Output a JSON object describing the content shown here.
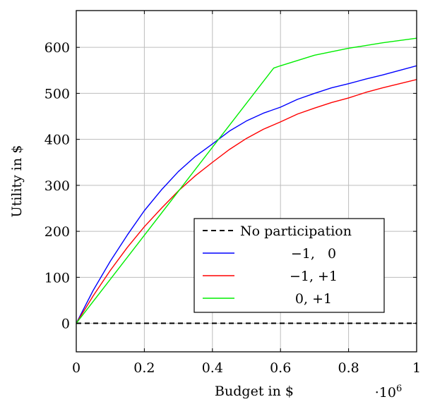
{
  "chart_data": {
    "type": "line",
    "xlabel": "Budget in $",
    "ylabel": "Utility in $",
    "x_multiplier_base": "·10",
    "x_multiplier_exp": "6",
    "xlim": [
      0,
      1
    ],
    "ylim": [
      -62,
      680
    ],
    "xticks": [
      0,
      0.2,
      0.4,
      0.6,
      0.8,
      1
    ],
    "xtick_labels": [
      "0",
      "0.2",
      "0.4",
      "0.6",
      "0.8",
      "1"
    ],
    "yticks": [
      0,
      100,
      200,
      300,
      400,
      500,
      600
    ],
    "ytick_labels": [
      "0",
      "100",
      "200",
      "300",
      "400",
      "500",
      "600"
    ],
    "grid": true,
    "legend_position": "lower-right",
    "series": [
      {
        "name": "No participation",
        "color": "#000000",
        "dash": true,
        "x": [
          0,
          1
        ],
        "y": [
          0,
          0
        ]
      },
      {
        "name": "−1,   0",
        "color": "#0000ff",
        "dash": false,
        "x": [
          0,
          0.05,
          0.1,
          0.15,
          0.2,
          0.25,
          0.3,
          0.35,
          0.4,
          0.45,
          0.5,
          0.55,
          0.6,
          0.65,
          0.7,
          0.75,
          0.8,
          0.85,
          0.9,
          0.95,
          1
        ],
        "y": [
          0,
          72,
          135,
          192,
          245,
          290,
          330,
          363,
          390,
          418,
          440,
          457,
          470,
          487,
          500,
          512,
          521,
          531,
          540,
          550,
          560
        ]
      },
      {
        "name": "−1, +1",
        "color": "#ff0000",
        "dash": false,
        "x": [
          0,
          0.05,
          0.1,
          0.15,
          0.2,
          0.25,
          0.3,
          0.35,
          0.4,
          0.45,
          0.5,
          0.55,
          0.6,
          0.65,
          0.7,
          0.75,
          0.8,
          0.85,
          0.9,
          0.95,
          1
        ],
        "y": [
          0,
          60,
          115,
          165,
          210,
          250,
          288,
          321,
          350,
          378,
          402,
          422,
          438,
          455,
          468,
          480,
          490,
          502,
          512,
          521,
          530
        ]
      },
      {
        "name": "0, +1",
        "color": "#00ee00",
        "dash": false,
        "x": [
          0,
          0.58,
          0.6,
          0.7,
          0.8,
          0.9,
          1
        ],
        "y": [
          0,
          555,
          560,
          583,
          598,
          610,
          620
        ]
      }
    ]
  }
}
